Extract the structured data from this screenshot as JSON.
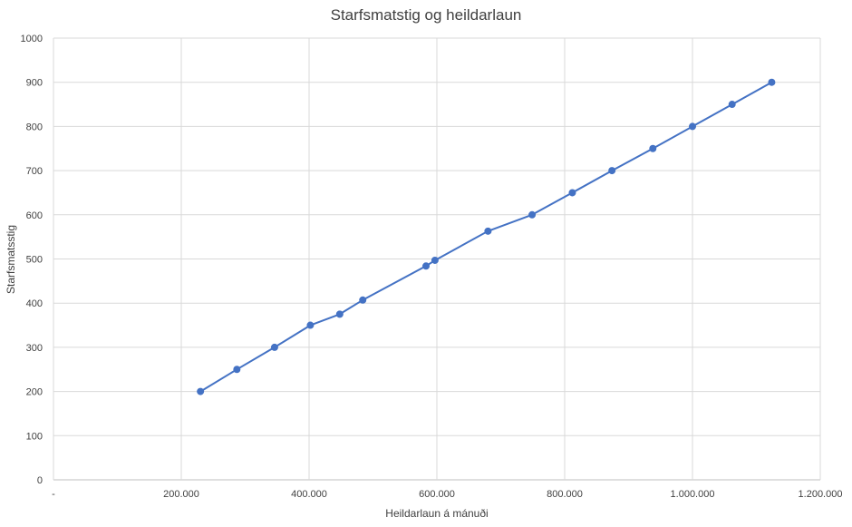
{
  "chart_data": {
    "type": "scatter",
    "title": "Starfsmatstig og heildarlaun",
    "xlabel": "Heildarlaun á mánuði",
    "ylabel": "Starfsmatsstig",
    "xlim": [
      0,
      1200000
    ],
    "ylim": [
      0,
      1000
    ],
    "x_ticks": [
      0,
      200000,
      400000,
      600000,
      800000,
      1000000,
      1200000
    ],
    "x_tick_labels": [
      "-",
      "200.000",
      "400.000",
      "600.000",
      "800.000",
      "1.000.000",
      "1.200.000"
    ],
    "y_ticks": [
      0,
      100,
      200,
      300,
      400,
      500,
      600,
      700,
      800,
      900,
      1000
    ],
    "y_tick_labels": [
      "0",
      "100",
      "200",
      "300",
      "400",
      "500",
      "600",
      "700",
      "800",
      "900",
      "1000"
    ],
    "grid": true,
    "legend": "none",
    "series": [
      {
        "color": "#4472C4",
        "line": true,
        "markers": true,
        "x": [
          230000,
          287000,
          346000,
          402000,
          448000,
          484000,
          583000,
          597000,
          680000,
          749000,
          812000,
          874000,
          938000,
          1000000,
          1062000,
          1124000
        ],
        "y": [
          200,
          250,
          300,
          350,
          375,
          407,
          484,
          497,
          563,
          600,
          650,
          700,
          750,
          800,
          850,
          900
        ]
      }
    ]
  }
}
